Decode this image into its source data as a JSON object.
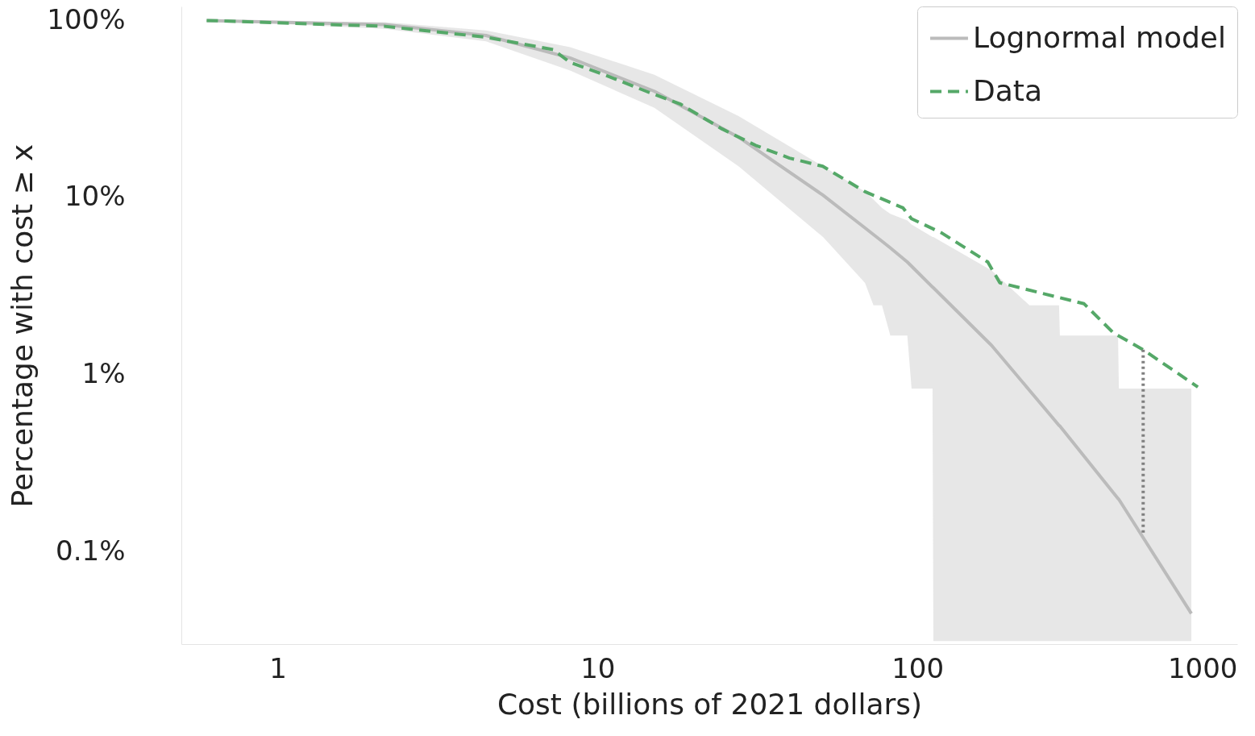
{
  "chart_data": {
    "type": "line",
    "xlabel": "Cost (billions of 2021 dollars)",
    "ylabel": "Percentage with cost ≥ x",
    "log": "xy",
    "xlim": [
      0.5,
      1000
    ],
    "ylim": [
      0.03,
      120
    ],
    "xticks": [
      1,
      10,
      100,
      1000
    ],
    "yticks": [
      {
        "value": 0.1,
        "label": "0.1%"
      },
      {
        "value": 1,
        "label": "1%"
      },
      {
        "value": 10,
        "label": "10%"
      },
      {
        "value": 100,
        "label": "100%"
      }
    ],
    "grid": false,
    "legend": "top right",
    "marker": "none",
    "series": [
      {
        "name": "Lognormal model",
        "color": "#bbbbbb",
        "line_style": "solid",
        "x": [
          0.6,
          2.16,
          4.48,
          8.21,
          15.06,
          27.6,
          50.7,
          68.6,
          72.9,
          77.5,
          82.3,
          93.0,
          95.9,
          111.5,
          112.2,
          170.6,
          224.1,
          277.2,
          278.9,
          423.9,
          426.5,
          718.6
        ],
        "values": [
          100,
          94.7,
          82.3,
          61.4,
          39.8,
          21.9,
          10.3,
          6.73,
          6.17,
          5.66,
          5.19,
          4.32,
          4.09,
          3.12,
          3.09,
          1.46,
          0.814,
          0.516,
          0.511,
          0.199,
          0.197,
          0.0446
        ],
        "upper": [
          100,
          97.9,
          87.8,
          70.7,
          49.4,
          28.8,
          15.0,
          10.8,
          9.73,
          8.73,
          8.09,
          7.42,
          7.03,
          5.98,
          5.98,
          3.87,
          2.46,
          2.46,
          1.66,
          1.66,
          0.832,
          0.832
        ],
        "lower": [
          100,
          89.7,
          76.3,
          52.2,
          32.1,
          15.0,
          5.98,
          3.29,
          2.46,
          2.46,
          1.66,
          1.66,
          0.832,
          0.832,
          0.0312,
          0.0312,
          0.0312,
          0.0312,
          0.0312,
          0.0312,
          0.0312,
          0.0312
        ]
      },
      {
        "name": "Data",
        "color": "#55a868",
        "line_style": "dashed",
        "x": [
          0.6,
          2.16,
          4.48,
          7.27,
          8.2,
          10.5,
          14.2,
          18.1,
          24.5,
          31.2,
          39.8,
          50.6,
          68.5,
          90.2,
          95.8,
          119,
          166,
          181,
          332,
          410,
          508,
          753
        ],
        "values": [
          100,
          92.7,
          80.5,
          68.4,
          58,
          49.4,
          39.8,
          33.8,
          24.4,
          19.7,
          16.7,
          15.0,
          10.8,
          8.73,
          7.59,
          6.31,
          4.32,
          3.3,
          2.51,
          1.72,
          1.38,
          0.85
        ]
      },
      {
        "color": "#808080",
        "line_style": "dotted",
        "x": [
          508,
          508
        ],
        "values": [
          1.38,
          0.125
        ]
      }
    ]
  }
}
